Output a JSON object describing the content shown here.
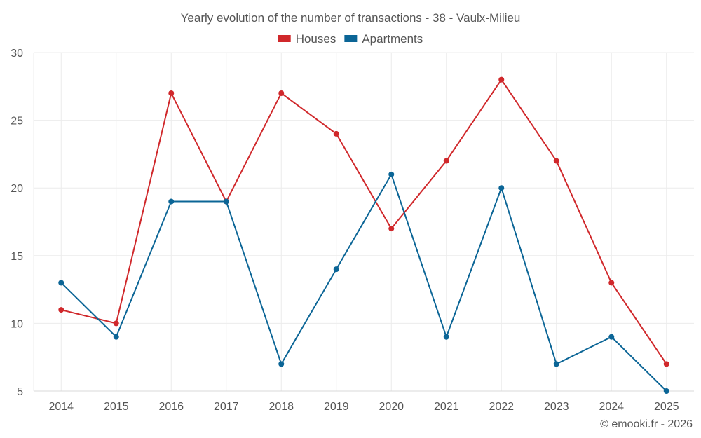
{
  "chart_data": {
    "type": "line",
    "title": "Yearly evolution of the number of transactions - 38 - Vaulx-Milieu",
    "categories": [
      "2014",
      "2015",
      "2016",
      "2017",
      "2018",
      "2019",
      "2020",
      "2021",
      "2022",
      "2023",
      "2024",
      "2025"
    ],
    "series": [
      {
        "name": "Houses",
        "color": "#d0282b",
        "values": [
          11,
          10,
          27,
          19,
          27,
          24,
          17,
          22,
          28,
          22,
          13,
          7
        ]
      },
      {
        "name": "Apartments",
        "color": "#0b6596",
        "values": [
          13,
          9,
          19,
          19,
          7,
          14,
          21,
          9,
          20,
          7,
          9,
          5
        ]
      }
    ],
    "ylim": [
      5,
      30
    ],
    "yticks": [
      5,
      10,
      15,
      20,
      25,
      30
    ],
    "xlabel": "",
    "ylabel": "",
    "grid": true,
    "legend": "top-center"
  },
  "credit": "© emooki.fr - 2026"
}
